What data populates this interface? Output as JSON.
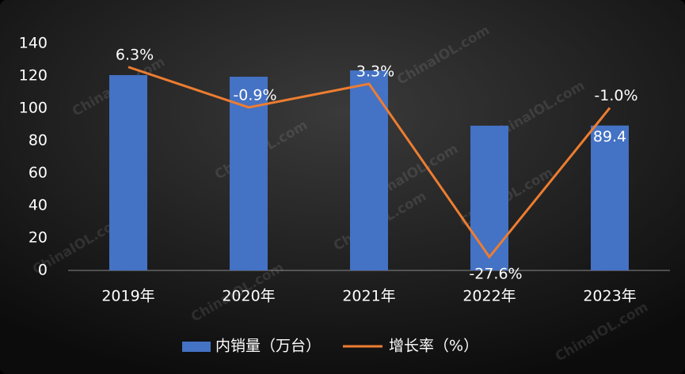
{
  "chart_data": {
    "type": "bar_line",
    "categories": [
      "2019年",
      "2020年",
      "2021年",
      "2022年",
      "2023年"
    ],
    "series": [
      {
        "name": "内销量（万台）",
        "type": "bar",
        "color": "#4472c4",
        "values": [
          120.5,
          119.5,
          123.4,
          89.3,
          89.4
        ],
        "value_labels": [
          null,
          null,
          null,
          null,
          "89.4"
        ]
      },
      {
        "name": "增长率（%）",
        "type": "line",
        "axis": "y2",
        "color": "#ed7d31",
        "values": [
          6.3,
          -0.9,
          3.3,
          -27.6,
          -1.0
        ],
        "value_labels": [
          "6.3%",
          "-0.9%",
          "3.3%",
          "-27.6%",
          "-1.0%"
        ]
      }
    ],
    "ylim": [
      0,
      140
    ],
    "yticks": [
      0,
      20,
      40,
      60,
      80,
      100,
      120,
      140
    ],
    "y2lim": [
      -30,
      10.5
    ],
    "legend": "bottom",
    "watermark": "ChinaIOL.com"
  }
}
